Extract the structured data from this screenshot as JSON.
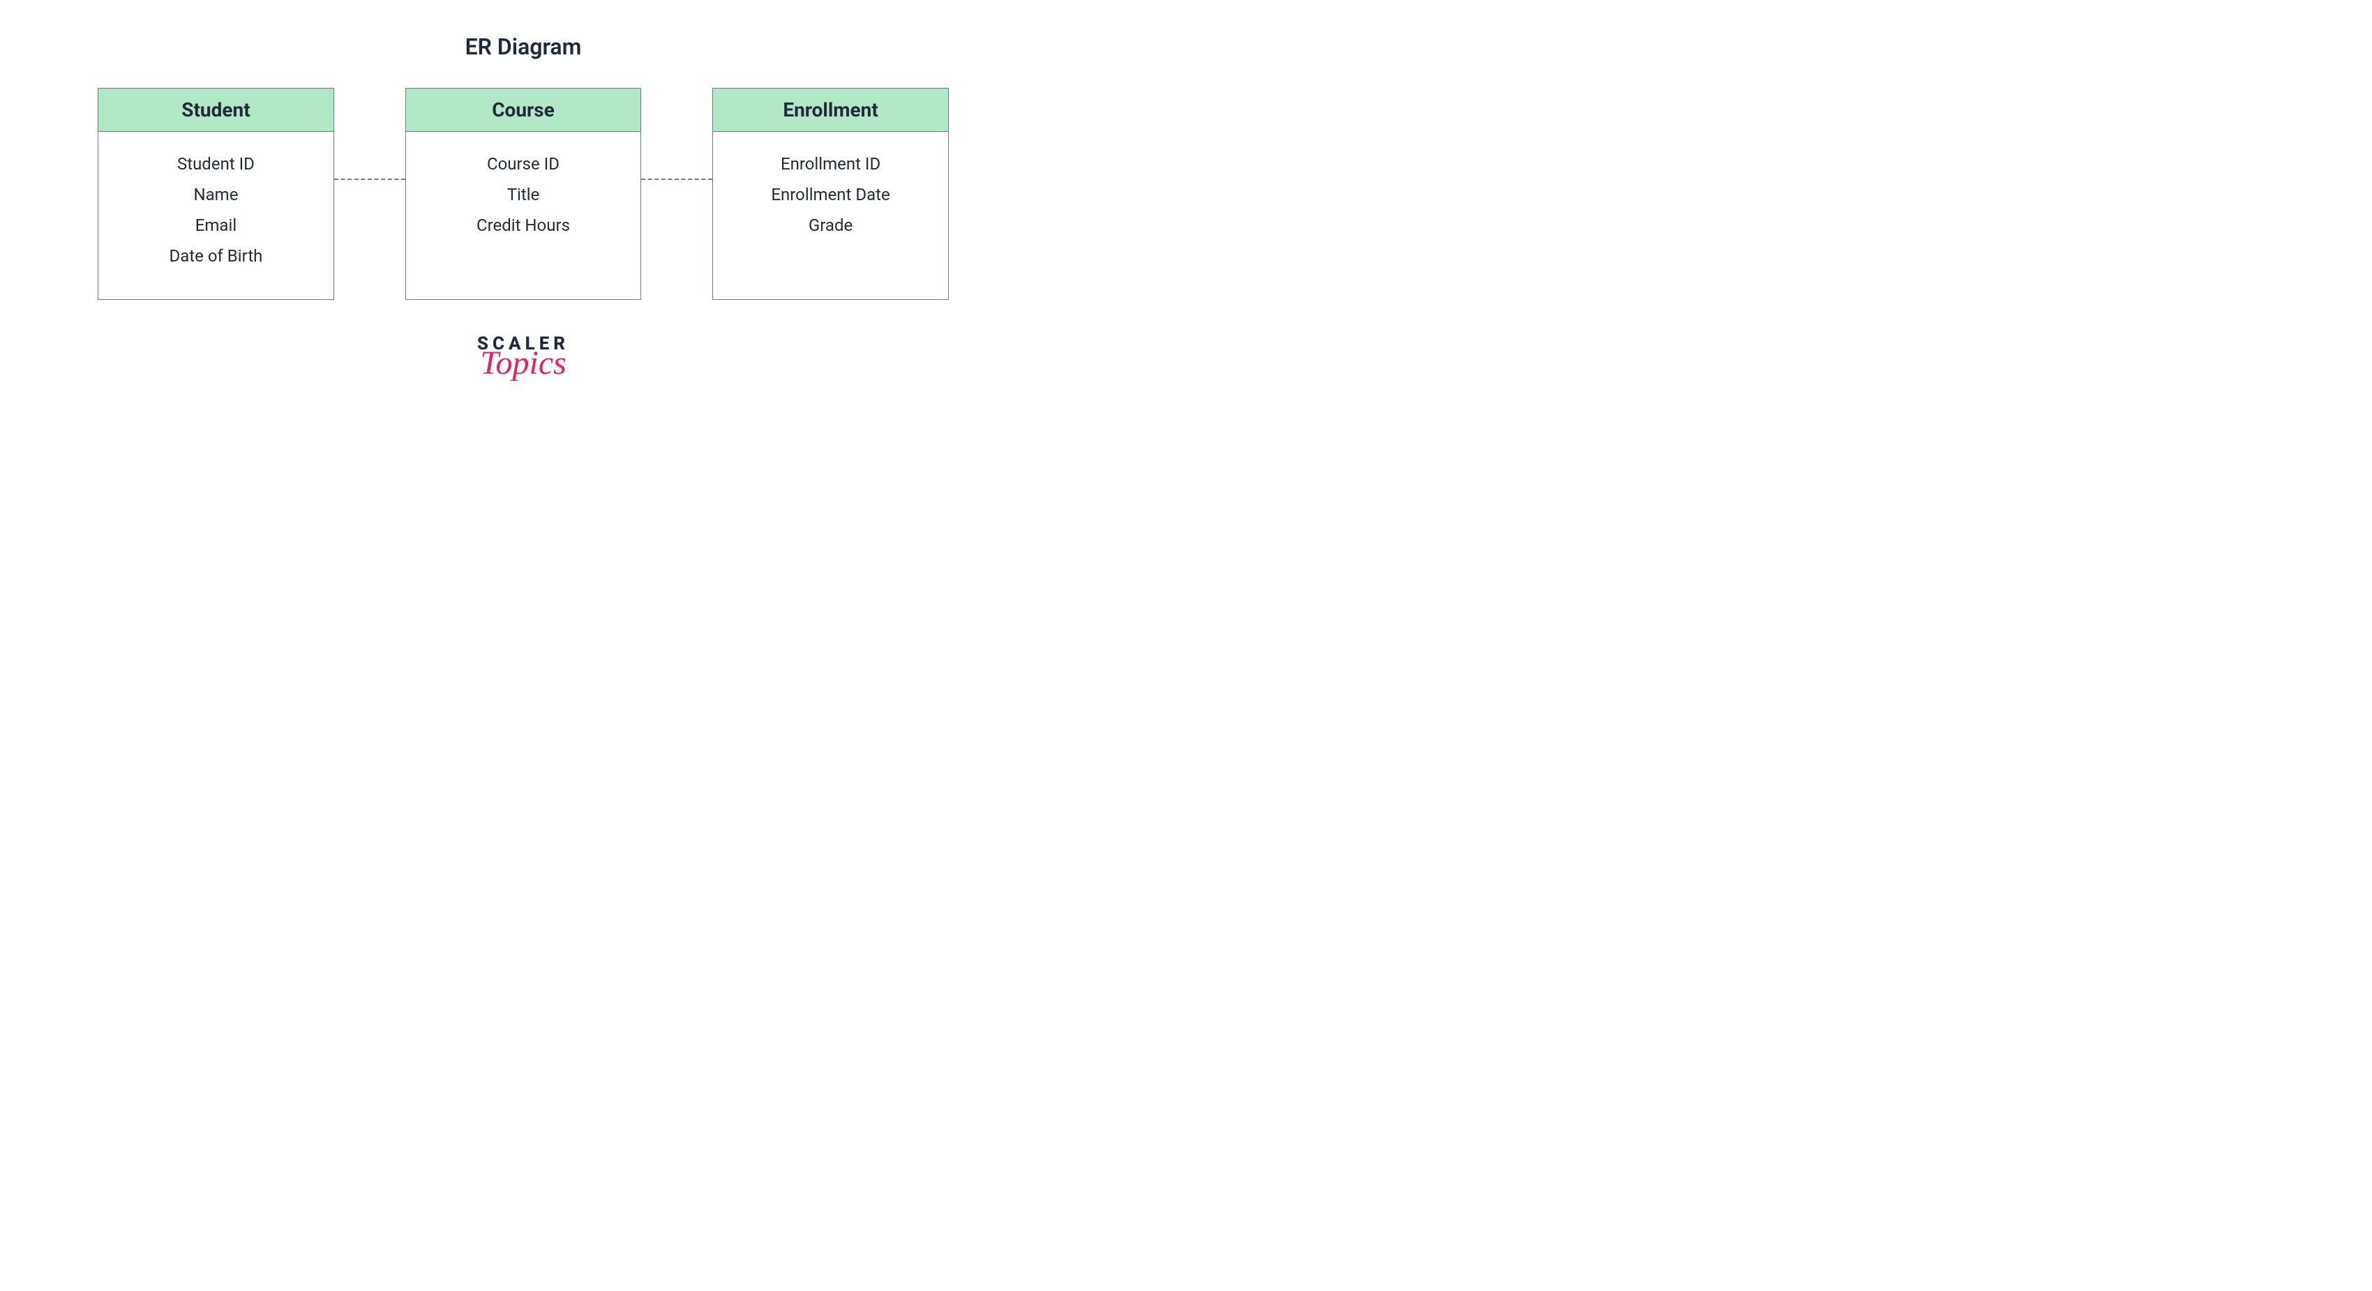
{
  "title": "ER Diagram",
  "entities": [
    {
      "name": "Student",
      "attributes": [
        "Student ID",
        "Name",
        "Email",
        "Date of Birth"
      ]
    },
    {
      "name": "Course",
      "attributes": [
        "Course ID",
        "Title",
        "Credit Hours"
      ]
    },
    {
      "name": "Enrollment",
      "attributes": [
        "Enrollment ID",
        "Enrollment Date",
        "Grade"
      ]
    }
  ],
  "logo": {
    "line1": "SCALER",
    "line2": "Topics"
  },
  "colors": {
    "header_bg": "#b1e8c5",
    "border": "#6b7a8a",
    "text": "#1e2a3a",
    "accent": "#e5206b",
    "background": "#ffffff"
  },
  "layout": {
    "entity_width": 340,
    "entity_body_min_height": 240,
    "connector_width": 102,
    "connector_style": "dashed",
    "title_fontsize": 32,
    "header_fontsize": 28,
    "attr_fontsize": 24
  }
}
